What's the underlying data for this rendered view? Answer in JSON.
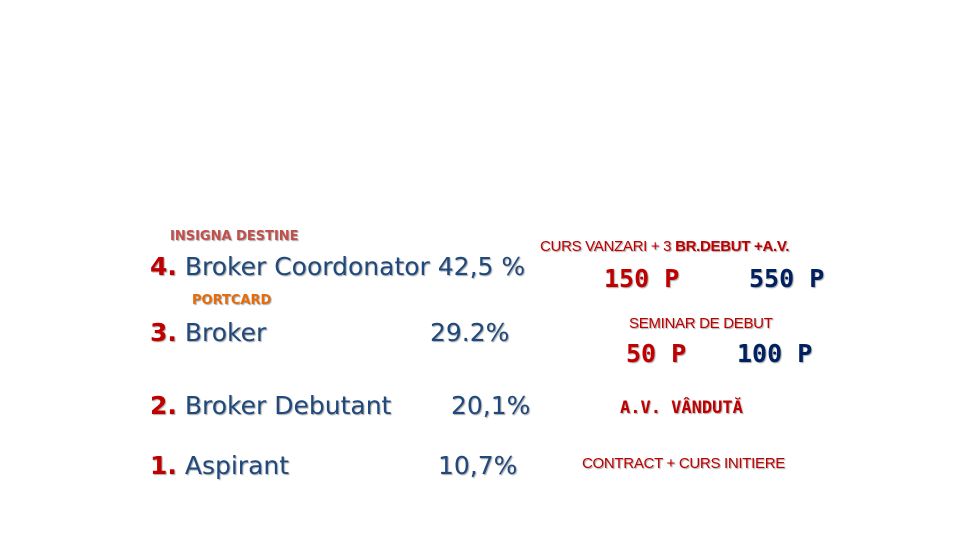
{
  "tags": {
    "insigna": "INSIGNA DESTINE",
    "portcard": "PORTCARD"
  },
  "levels": [
    {
      "num": "4.",
      "name": "Broker Coordonator",
      "pct": "42,5 %"
    },
    {
      "num": "3.",
      "name": "Broker",
      "pct": "29.2%"
    },
    {
      "num": "2.",
      "name": "Broker Debutant",
      "pct": "20,1%"
    },
    {
      "num": "1.",
      "name": "Aspirant",
      "pct": "10,7%"
    }
  ],
  "requirements": {
    "curs_prefix": "CURS VANZARI + 3 ",
    "curs_bold": "BR.DEBUT +A.V.",
    "curs_points_a": "150 P",
    "curs_points_b": "550 P",
    "seminar": "SEMINAR DE DEBUT",
    "seminar_points_a": "50 P",
    "seminar_points_b": "100 P",
    "av_vanduta": "A.V. VÂNDUTĂ",
    "contract": "CONTRACT + CURS INITIERE"
  },
  "colors": {
    "accent_red": "#c00000",
    "text_blue": "#1f497d",
    "tag_orange": "#e46c0a"
  }
}
